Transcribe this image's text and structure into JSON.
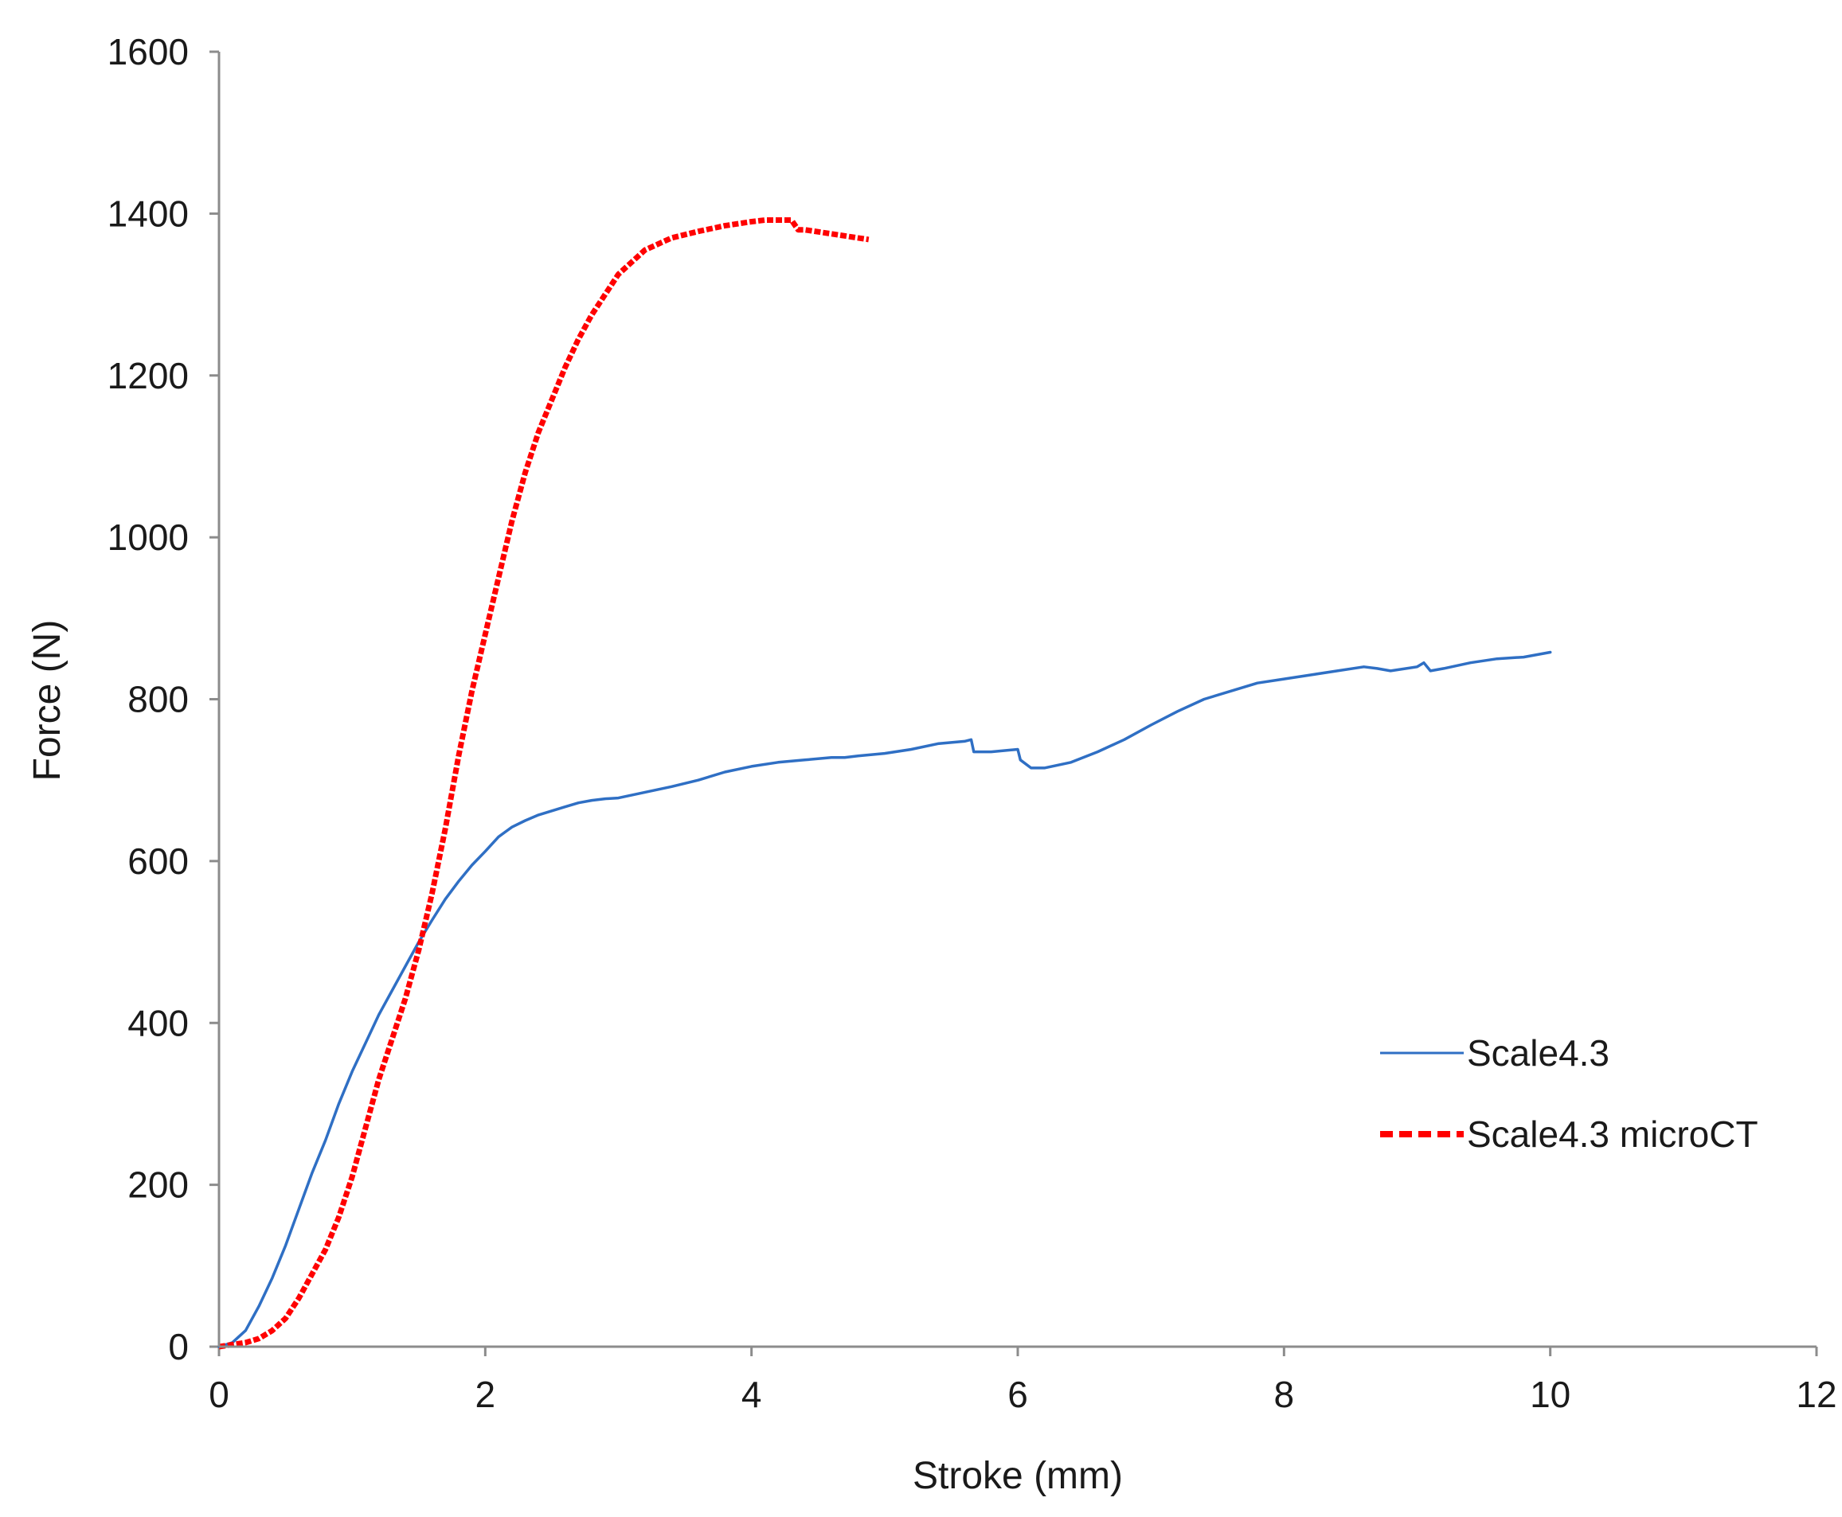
{
  "chart_data": {
    "type": "line",
    "title": "",
    "xlabel": "Stroke (mm)",
    "ylabel": "Force (N)",
    "xlim": [
      0,
      12
    ],
    "ylim": [
      0,
      1600
    ],
    "xticks": [
      0,
      2,
      4,
      6,
      8,
      10,
      12
    ],
    "yticks": [
      0,
      200,
      400,
      600,
      800,
      1000,
      1200,
      1400,
      1600
    ],
    "grid": false,
    "legend_position": "center-right",
    "series": [
      {
        "name": "Scale4.3",
        "color": "#2F6FC4",
        "style": "solid",
        "x": [
          0,
          0.1,
          0.2,
          0.3,
          0.4,
          0.5,
          0.6,
          0.7,
          0.8,
          0.9,
          1.0,
          1.1,
          1.2,
          1.3,
          1.4,
          1.5,
          1.6,
          1.7,
          1.8,
          1.9,
          2.0,
          2.1,
          2.2,
          2.3,
          2.4,
          2.5,
          2.6,
          2.7,
          2.8,
          2.9,
          3.0,
          3.2,
          3.4,
          3.6,
          3.8,
          4.0,
          4.2,
          4.4,
          4.6,
          4.7,
          4.8,
          5.0,
          5.2,
          5.4,
          5.6,
          5.65,
          5.67,
          5.8,
          6.0,
          6.02,
          6.1,
          6.2,
          6.4,
          6.6,
          6.8,
          7.0,
          7.2,
          7.4,
          7.6,
          7.8,
          8.0,
          8.2,
          8.4,
          8.6,
          8.7,
          8.8,
          9.0,
          9.05,
          9.1,
          9.2,
          9.4,
          9.6,
          9.8,
          10.0
        ],
        "y": [
          0,
          5,
          20,
          50,
          85,
          125,
          170,
          215,
          255,
          300,
          340,
          375,
          410,
          440,
          470,
          500,
          527,
          553,
          575,
          595,
          612,
          630,
          642,
          650,
          657,
          662,
          667,
          672,
          675,
          677,
          678,
          685,
          692,
          700,
          710,
          717,
          722,
          725,
          728,
          728,
          730,
          733,
          738,
          745,
          748,
          750,
          735,
          735,
          738,
          725,
          715,
          715,
          722,
          735,
          750,
          768,
          785,
          800,
          810,
          820,
          825,
          830,
          835,
          840,
          838,
          835,
          840,
          845,
          835,
          838,
          845,
          850,
          852,
          858
        ]
      },
      {
        "name": "Scale4.3 microCT",
        "color": "#FF0000",
        "style": "dashed",
        "x": [
          0,
          0.2,
          0.3,
          0.4,
          0.5,
          0.6,
          0.7,
          0.8,
          0.9,
          1.0,
          1.1,
          1.2,
          1.3,
          1.4,
          1.5,
          1.6,
          1.7,
          1.8,
          1.9,
          2.0,
          2.1,
          2.2,
          2.3,
          2.4,
          2.5,
          2.6,
          2.7,
          2.8,
          2.9,
          3.0,
          3.2,
          3.4,
          3.6,
          3.8,
          4.0,
          4.1,
          4.2,
          4.3,
          4.35,
          4.4,
          4.6,
          4.8,
          4.88
        ],
        "y": [
          0,
          5,
          10,
          20,
          35,
          60,
          90,
          120,
          160,
          210,
          270,
          330,
          380,
          430,
          490,
          560,
          640,
          730,
          810,
          880,
          950,
          1020,
          1080,
          1130,
          1170,
          1210,
          1245,
          1275,
          1300,
          1325,
          1355,
          1370,
          1378,
          1385,
          1390,
          1392,
          1392,
          1392,
          1380,
          1380,
          1375,
          1370,
          1368
        ]
      }
    ]
  }
}
